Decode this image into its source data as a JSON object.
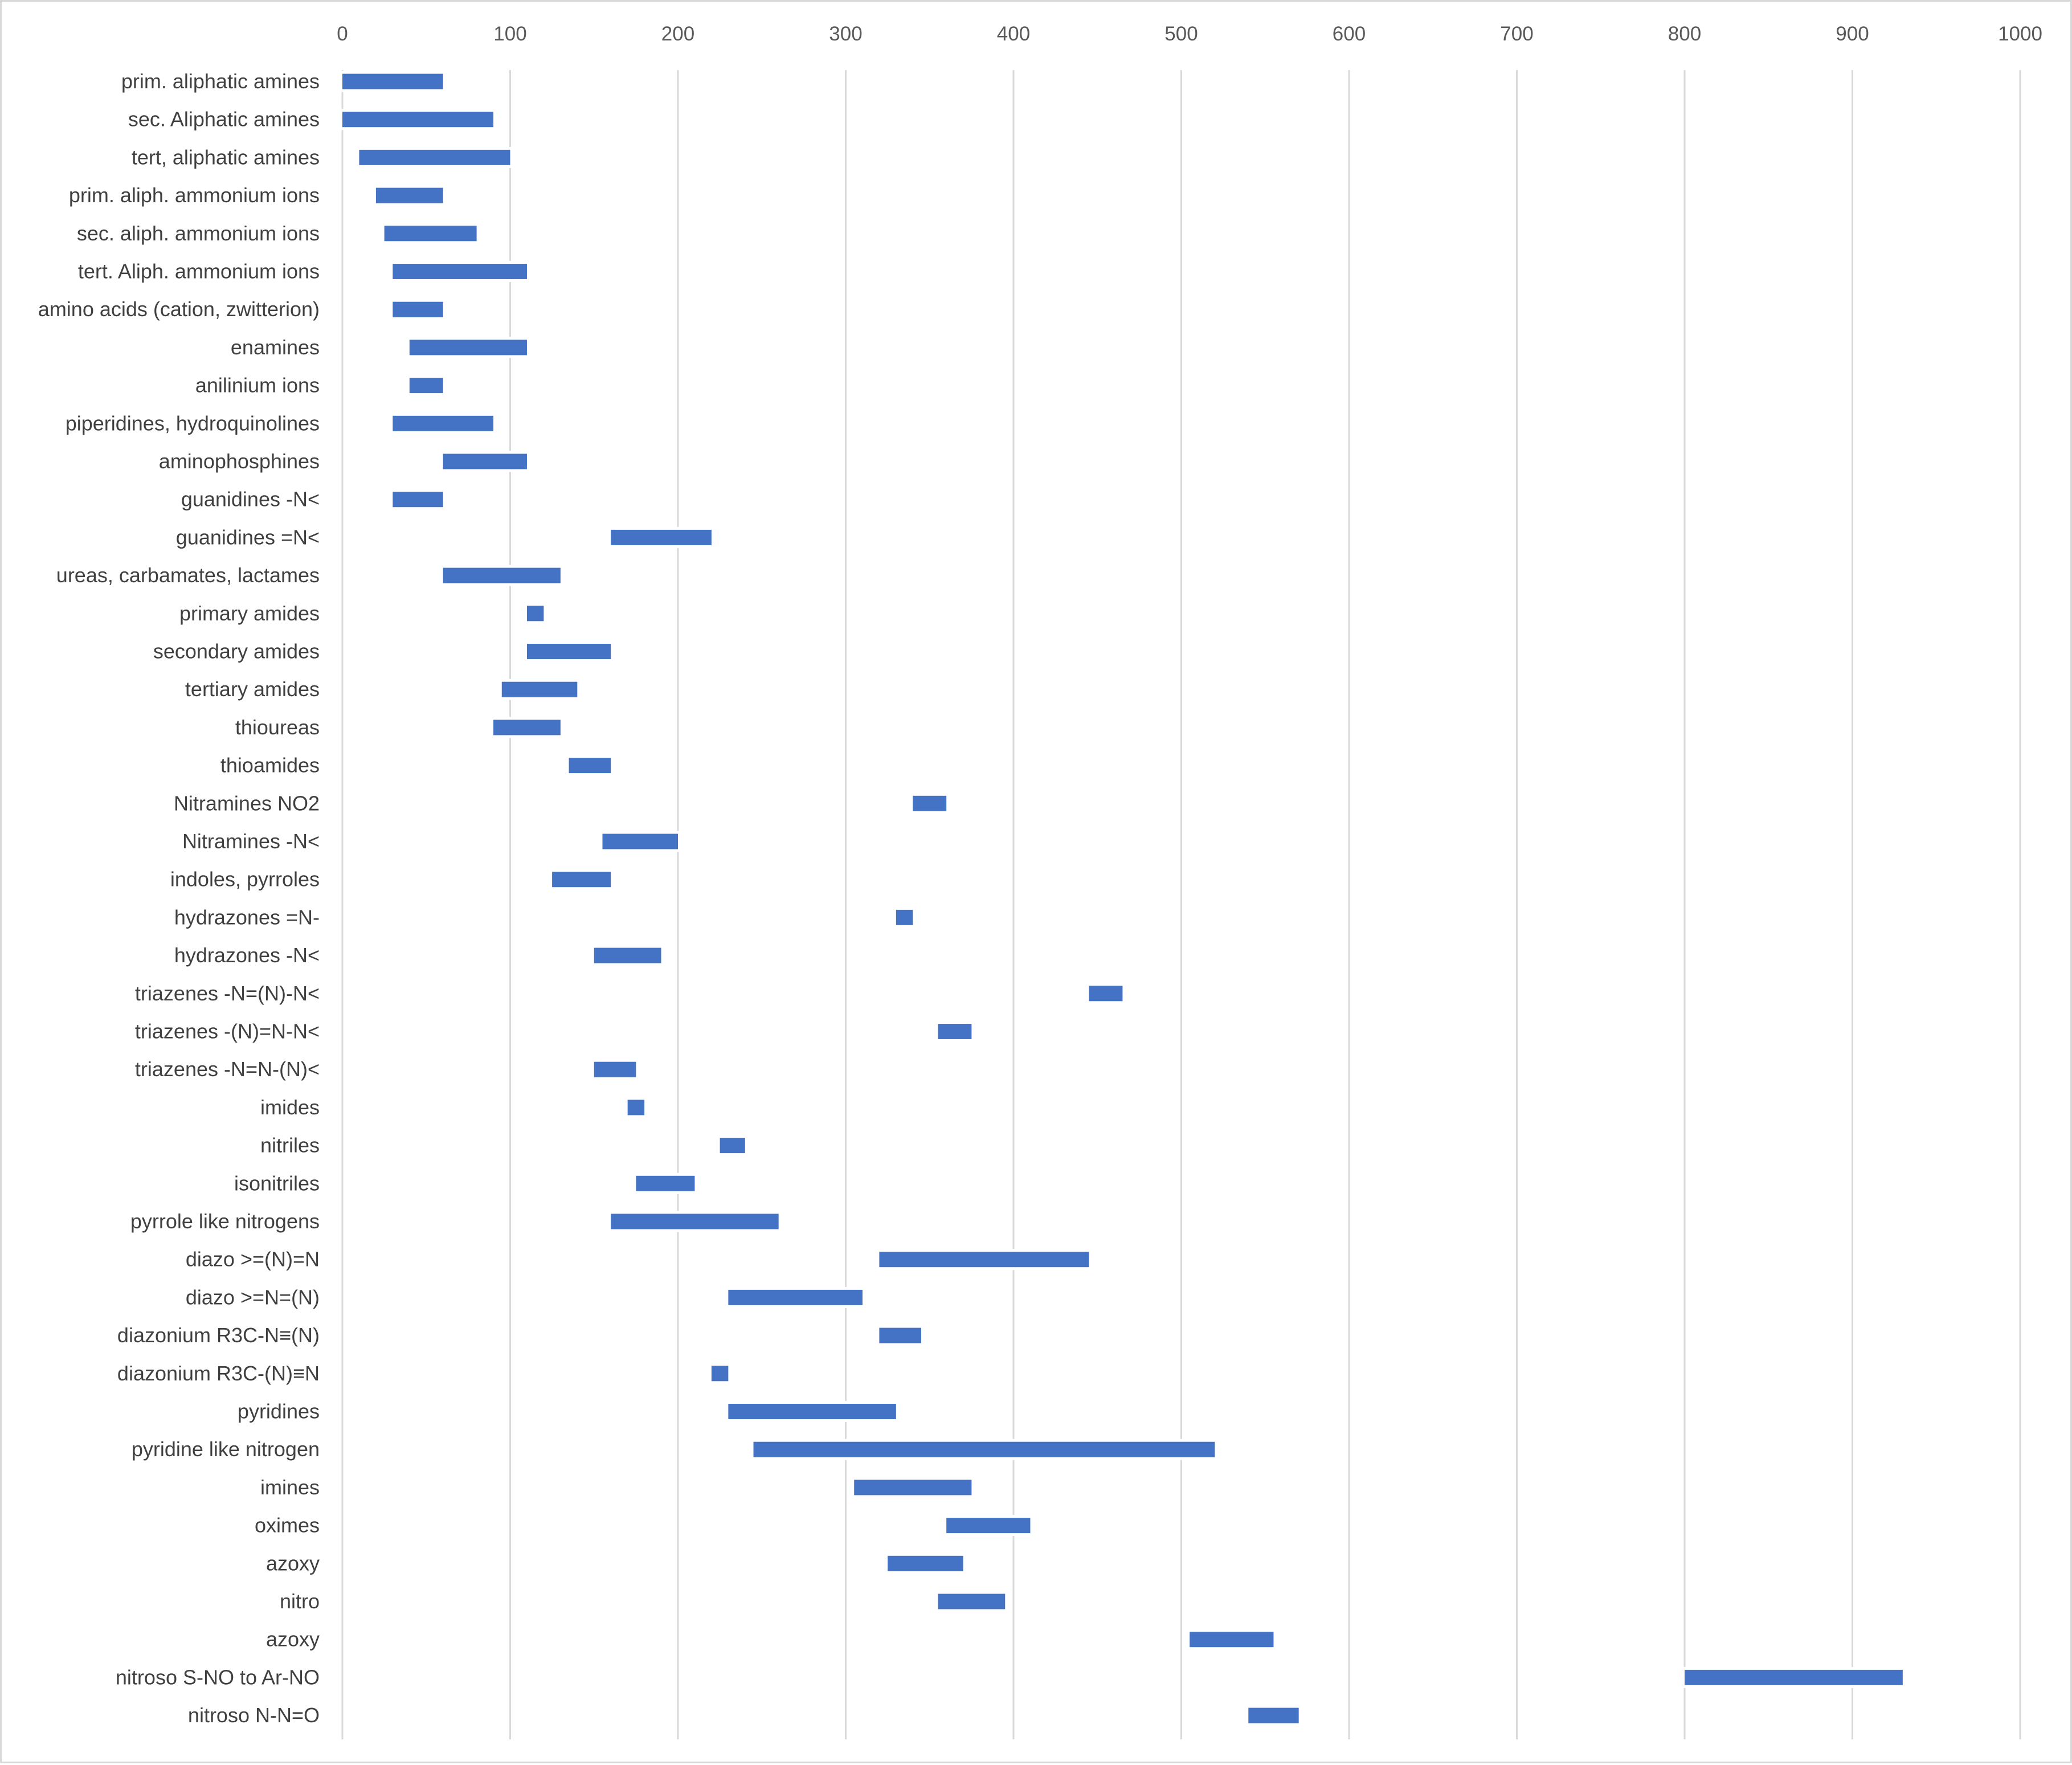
{
  "chart_data": {
    "type": "bar",
    "subtype": "floating-horizontal-range",
    "title": "",
    "xlabel": "",
    "ylabel": "",
    "xlim": [
      0,
      1000
    ],
    "x_ticks": [
      "0",
      "100",
      "200",
      "300",
      "400",
      "500",
      "600",
      "700",
      "800",
      "900",
      "1000"
    ],
    "grid": true,
    "series": [
      {
        "name": "range",
        "color": "#4472c4",
        "data": [
          {
            "category": "prim. aliphatic amines",
            "start": 0,
            "end": 60
          },
          {
            "category": "sec. Aliphatic amines",
            "start": 0,
            "end": 90
          },
          {
            "category": "tert, aliphatic amines",
            "start": 10,
            "end": 100
          },
          {
            "category": "prim. aliph. ammonium ions",
            "start": 20,
            "end": 60
          },
          {
            "category": "sec. aliph. ammonium ions",
            "start": 25,
            "end": 80
          },
          {
            "category": "tert. Aliph. ammonium ions",
            "start": 30,
            "end": 110
          },
          {
            "category": "amino acids (cation, zwitterion)",
            "start": 30,
            "end": 60
          },
          {
            "category": "enamines",
            "start": 40,
            "end": 110
          },
          {
            "category": "anilinium ions",
            "start": 40,
            "end": 60
          },
          {
            "category": "piperidines, hydroquinolines",
            "start": 30,
            "end": 90
          },
          {
            "category": "aminophosphines",
            "start": 60,
            "end": 110
          },
          {
            "category": "guanidines -N<",
            "start": 30,
            "end": 60
          },
          {
            "category": "guanidines =N<",
            "start": 160,
            "end": 220
          },
          {
            "category": "ureas, carbamates, lactames",
            "start": 60,
            "end": 130
          },
          {
            "category": "primary amides",
            "start": 110,
            "end": 120
          },
          {
            "category": "secondary amides",
            "start": 110,
            "end": 160
          },
          {
            "category": "tertiary amides",
            "start": 95,
            "end": 140
          },
          {
            "category": "thioureas",
            "start": 90,
            "end": 130
          },
          {
            "category": "thioamides",
            "start": 135,
            "end": 160
          },
          {
            "category": "Nitramines  NO2",
            "start": 340,
            "end": 360
          },
          {
            "category": "Nitramines  -N<",
            "start": 155,
            "end": 200
          },
          {
            "category": "indoles, pyrroles",
            "start": 125,
            "end": 160
          },
          {
            "category": "hydrazones =N-",
            "start": 330,
            "end": 340
          },
          {
            "category": "hydrazones -N<",
            "start": 150,
            "end": 190
          },
          {
            "category": "triazenes -N=(N)-N<",
            "start": 445,
            "end": 465
          },
          {
            "category": "triazenes -(N)=N-N<",
            "start": 355,
            "end": 375
          },
          {
            "category": "triazenes -N=N-(N)<",
            "start": 150,
            "end": 175
          },
          {
            "category": "imides",
            "start": 170,
            "end": 180
          },
          {
            "category": "nitriles",
            "start": 225,
            "end": 240
          },
          {
            "category": "isonitriles",
            "start": 175,
            "end": 210
          },
          {
            "category": "pyrrole like nitrogens",
            "start": 160,
            "end": 260
          },
          {
            "category": "diazo >=(N)=N",
            "start": 320,
            "end": 445
          },
          {
            "category": "diazo >=N=(N)",
            "start": 230,
            "end": 310
          },
          {
            "category": "diazonium R3C-N≡(N)",
            "start": 320,
            "end": 345
          },
          {
            "category": "diazonium R3C-(N)≡N",
            "start": 220,
            "end": 230
          },
          {
            "category": "pyridines",
            "start": 230,
            "end": 330
          },
          {
            "category": "pyridine like nitrogen",
            "start": 245,
            "end": 520
          },
          {
            "category": "imines",
            "start": 305,
            "end": 375
          },
          {
            "category": "oximes",
            "start": 360,
            "end": 410
          },
          {
            "category": "azoxy",
            "start": 325,
            "end": 370
          },
          {
            "category": "nitro",
            "start": 355,
            "end": 395
          },
          {
            "category": "azoxy",
            "start": 505,
            "end": 555
          },
          {
            "category": "nitroso S-NO to Ar-NO",
            "start": 800,
            "end": 930
          },
          {
            "category": "nitroso N-N=O",
            "start": 540,
            "end": 570
          }
        ]
      }
    ],
    "legend": "none"
  }
}
